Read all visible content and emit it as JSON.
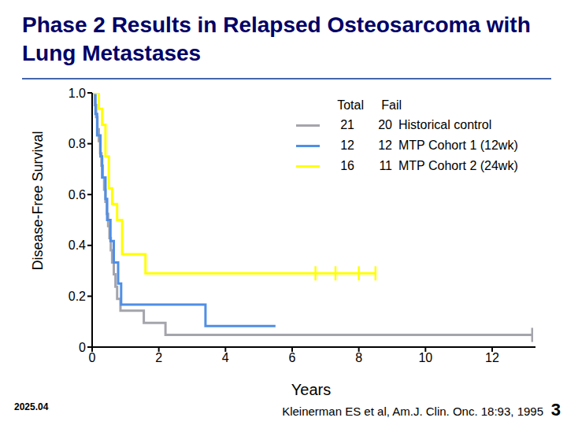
{
  "chart_data": {
    "type": "line",
    "title": "Phase 2 Results in Relapsed Osteosarcoma with Lung Metastases",
    "y_label": "Disease-Free Survival",
    "x_label": "Years",
    "xlim": [
      0,
      13.3
    ],
    "xticks": [
      0,
      2,
      4,
      6,
      8,
      10,
      12
    ],
    "ylim": [
      0,
      1
    ],
    "yticks": [
      0,
      0.2,
      0.4,
      0.6,
      0.8,
      {
        "value": 1,
        "label": "1.0"
      }
    ],
    "grid": false,
    "line_style": "step",
    "legend": "top-right",
    "legend_headers": [
      "Total",
      "Fail"
    ],
    "series": [
      {
        "name": "Historical control",
        "color": "#a4a4ac",
        "total": 21,
        "fail": 20,
        "x": [
          0,
          0.08,
          0.12,
          0.16,
          0.2,
          0.24,
          0.28,
          0.32,
          0.36,
          0.4,
          0.44,
          0.48,
          0.52,
          0.56,
          0.6,
          0.65,
          0.7,
          0.75,
          0.85,
          1.55,
          2.2,
          13.2
        ],
        "values": [
          1,
          0.952,
          0.905,
          0.857,
          0.81,
          0.762,
          0.714,
          0.667,
          0.619,
          0.571,
          0.524,
          0.476,
          0.429,
          0.381,
          0.333,
          0.286,
          0.238,
          0.19,
          0.143,
          0.095,
          0.048,
          0.048
        ],
        "censored": [
          13.2
        ]
      },
      {
        "name": "MTP Cohort 1 (12wk)",
        "color": "#4f8fe6",
        "total": 12,
        "fail": 12,
        "x": [
          0,
          0.1,
          0.15,
          0.25,
          0.3,
          0.4,
          0.45,
          0.55,
          0.65,
          0.78,
          0.87,
          3.4,
          5.5
        ],
        "values": [
          1,
          0.917,
          0.833,
          0.75,
          0.667,
          0.583,
          0.5,
          0.417,
          0.333,
          0.25,
          0.167,
          0.083,
          0.083
        ],
        "censored": []
      },
      {
        "name": "MTP Cohort 2 (24wk)",
        "color": "#ffff00",
        "total": 16,
        "fail": 11,
        "x": [
          0,
          0.2,
          0.3,
          0.4,
          0.5,
          0.6,
          0.75,
          0.9,
          1.6,
          8.5
        ],
        "values": [
          1,
          0.9375,
          0.875,
          0.75,
          0.625,
          0.5625,
          0.5,
          0.365,
          0.29,
          0.29
        ],
        "censored": [
          6.7,
          7.3,
          8.0,
          8.5
        ]
      }
    ],
    "date": "2025.04",
    "source": "Kleinerman ES et al, Am.J. Clin. Onc. 18:93, 1995",
    "page": 3
  }
}
